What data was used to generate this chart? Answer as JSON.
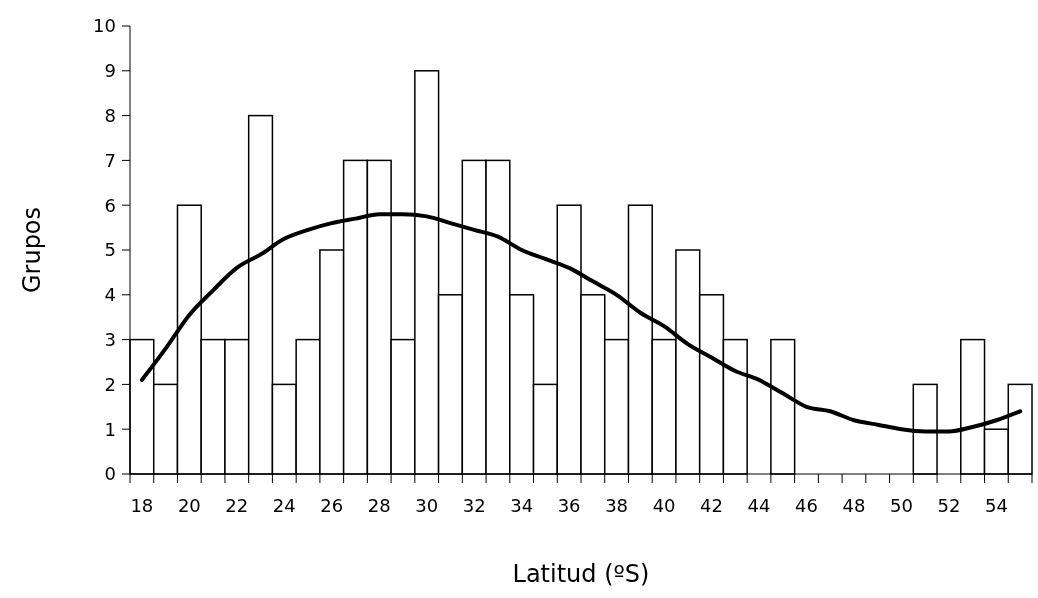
{
  "chart_data": {
    "type": "bar",
    "xlabel": "Latitud (ºS)",
    "ylabel": "Grupos",
    "categories": [
      "18",
      null,
      "20",
      null,
      "22",
      null,
      "24",
      null,
      "26",
      null,
      "28",
      null,
      "30",
      null,
      "32",
      null,
      "34",
      null,
      "36",
      null,
      "38",
      null,
      "40",
      null,
      "42",
      null,
      "44",
      null,
      "46",
      null,
      "48",
      null,
      "50",
      null,
      "52",
      null,
      "54",
      null
    ],
    "series": [
      {
        "color": "#ffffff",
        "values": [
          3,
          2,
          6,
          3,
          3,
          8,
          2,
          3,
          5,
          7,
          7,
          3,
          9,
          4,
          7,
          7,
          4,
          2,
          6,
          4,
          3,
          6,
          3,
          5,
          4,
          3,
          0,
          3,
          0,
          0,
          0,
          0,
          0,
          2,
          0,
          3,
          1,
          2
        ]
      },
      {
        "type": "line",
        "color": "#000000",
        "values": [
          2.1,
          2.8,
          3.55,
          4.1,
          4.6,
          4.9,
          5.25,
          5.45,
          5.6,
          5.7,
          5.8,
          5.8,
          5.75,
          5.6,
          5.45,
          5.3,
          5.0,
          4.8,
          4.6,
          4.3,
          4.0,
          3.6,
          3.3,
          2.9,
          2.6,
          2.3,
          2.1,
          1.8,
          1.5,
          1.4,
          1.2,
          1.1,
          1.0,
          0.95,
          0.95,
          1.05,
          1.2,
          1.4
        ]
      }
    ],
    "ylim": [
      0,
      10
    ],
    "yticks": [
      0,
      1,
      2,
      3,
      4,
      5,
      6,
      7,
      8,
      9,
      10
    ],
    "grid": false,
    "line_style": "solid",
    "marker": "none"
  }
}
